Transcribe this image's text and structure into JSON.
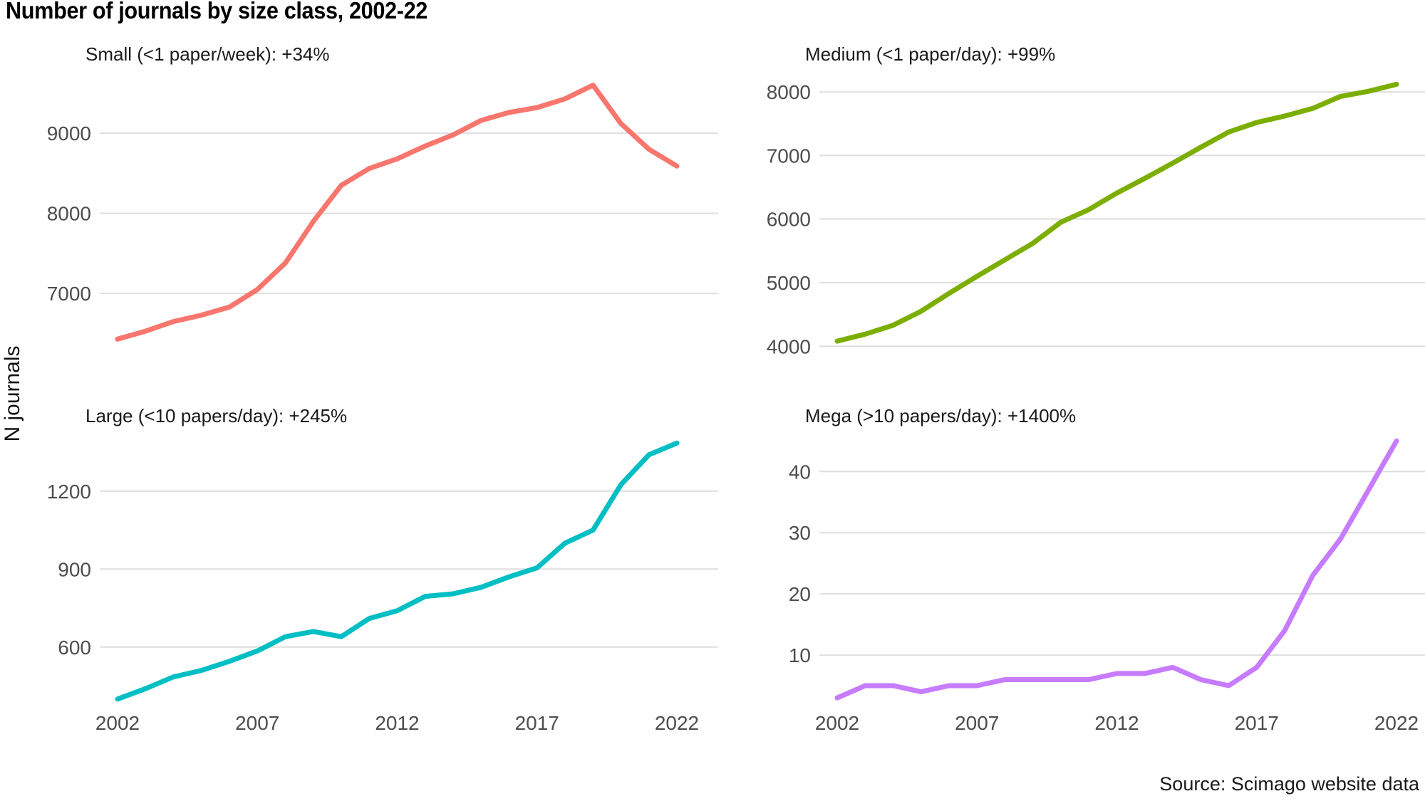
{
  "title": "Number of journals by size class, 2002-22",
  "y_axis_label": "N journals",
  "source": "Source: Scimago website data",
  "colors": {
    "small": "#F8766D",
    "medium": "#7CAE00",
    "large": "#00BFC4",
    "mega": "#C77CFF",
    "gridline": "#DEDEDE",
    "tick_text": "#4d4d4d",
    "subtitle_text": "#1a1a1a"
  },
  "chart_data": [
    {
      "type": "line",
      "facet": "small",
      "label": "Small (<1 paper/week): +34%",
      "color": "#F8766D",
      "x": [
        2002,
        2003,
        2004,
        2005,
        2006,
        2007,
        2008,
        2009,
        2010,
        2011,
        2012,
        2013,
        2014,
        2015,
        2016,
        2017,
        2018,
        2019,
        2020,
        2021,
        2022
      ],
      "values": [
        6430,
        6530,
        6650,
        6730,
        6830,
        7050,
        7380,
        7900,
        8350,
        8560,
        8680,
        8840,
        8980,
        9160,
        9260,
        9320,
        9430,
        9600,
        9120,
        8800,
        8590
      ],
      "yticks": [
        7000,
        8000,
        9000
      ],
      "ylim": [
        6175,
        9730
      ],
      "xticks": [
        2002,
        2007,
        2012,
        2017,
        2022
      ],
      "show_x_tick_labels": false,
      "grid": "horizontal-only",
      "legend": "none"
    },
    {
      "type": "line",
      "facet": "medium",
      "label": "Medium (<1 paper/day): +99%",
      "color": "#7CAE00",
      "x": [
        2002,
        2003,
        2004,
        2005,
        2006,
        2007,
        2008,
        2009,
        2010,
        2011,
        2012,
        2013,
        2014,
        2015,
        2016,
        2017,
        2018,
        2019,
        2020,
        2021,
        2022
      ],
      "values": [
        4080,
        4190,
        4330,
        4550,
        4830,
        5100,
        5360,
        5620,
        5950,
        6150,
        6410,
        6640,
        6880,
        7130,
        7370,
        7520,
        7620,
        7740,
        7930,
        8010,
        8120
      ],
      "yticks": [
        4000,
        5000,
        6000,
        7000,
        8000
      ],
      "ylim": [
        3790,
        8270
      ],
      "xticks": [
        2002,
        2007,
        2012,
        2017,
        2022
      ],
      "show_x_tick_labels": false,
      "grid": "horizontal-only",
      "legend": "none"
    },
    {
      "type": "line",
      "facet": "large",
      "label": "Large (<10 papers/day): +245%",
      "color": "#00BFC4",
      "x": [
        2002,
        2003,
        2004,
        2005,
        2006,
        2007,
        2008,
        2009,
        2010,
        2011,
        2012,
        2013,
        2014,
        2015,
        2016,
        2017,
        2018,
        2019,
        2020,
        2021,
        2022
      ],
      "values": [
        400,
        440,
        485,
        510,
        545,
        585,
        640,
        660,
        640,
        710,
        740,
        795,
        805,
        830,
        870,
        905,
        1000,
        1050,
        1225,
        1340,
        1385
      ],
      "yticks": [
        600,
        900,
        1200
      ],
      "ylim": [
        350,
        1405
      ],
      "xticks": [
        2002,
        2007,
        2012,
        2017,
        2022
      ],
      "show_x_tick_labels": true,
      "grid": "horizontal-only",
      "legend": "none"
    },
    {
      "type": "line",
      "facet": "mega",
      "label": "Mega (>10 papers/day): +1400%",
      "color": "#C77CFF",
      "x": [
        2002,
        2003,
        2004,
        2005,
        2006,
        2007,
        2008,
        2009,
        2010,
        2011,
        2012,
        2013,
        2014,
        2015,
        2016,
        2017,
        2018,
        2019,
        2020,
        2021,
        2022
      ],
      "values": [
        3,
        5,
        5,
        4,
        5,
        5,
        6,
        6,
        6,
        6,
        7,
        7,
        8,
        6,
        5,
        8,
        14,
        23,
        29,
        37,
        45
      ],
      "yticks": [
        10,
        20,
        30,
        40
      ],
      "ylim": [
        0.7,
        45.5
      ],
      "xticks": [
        2002,
        2007,
        2012,
        2017,
        2022
      ],
      "show_x_tick_labels": true,
      "grid": "horizontal-only",
      "legend": "none"
    }
  ]
}
